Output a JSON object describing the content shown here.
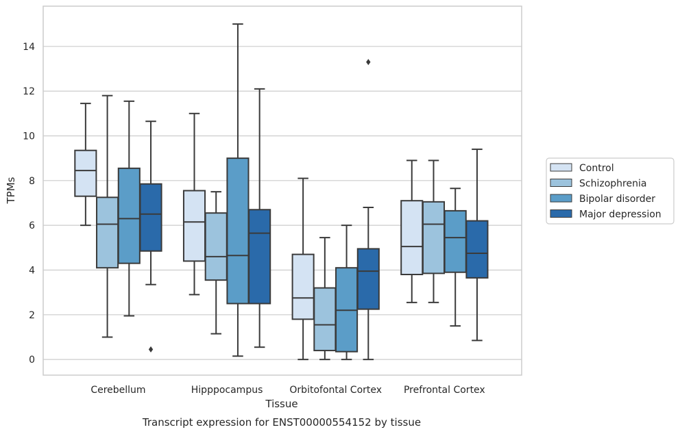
{
  "chart_data": {
    "type": "box",
    "title": "",
    "caption": "Transcript expression for ENST00000554152 by tissue",
    "xlabel": "Tissue",
    "ylabel": "TPMs",
    "ylim": [
      -0.7,
      15.8
    ],
    "yticks": [
      0,
      2,
      4,
      6,
      8,
      10,
      12,
      14
    ],
    "grid": "horizontal",
    "legend_position": "right",
    "categories": [
      "Cerebellum",
      "Hipppocampus",
      "Orbitofontal Cortex",
      "Prefrontal Cortex"
    ],
    "series": [
      {
        "name": "Control",
        "color": "#d4e3f3",
        "boxes": [
          {
            "whislo": 6.0,
            "q1": 7.3,
            "med": 8.45,
            "q3": 9.35,
            "whishi": 11.45,
            "fliers": []
          },
          {
            "whislo": 2.9,
            "q1": 4.4,
            "med": 6.15,
            "q3": 7.55,
            "whishi": 11.0,
            "fliers": []
          },
          {
            "whislo": 0.0,
            "q1": 1.8,
            "med": 2.75,
            "q3": 4.7,
            "whishi": 8.1,
            "fliers": []
          },
          {
            "whislo": 2.55,
            "q1": 3.8,
            "med": 5.05,
            "q3": 7.1,
            "whishi": 8.9,
            "fliers": []
          }
        ]
      },
      {
        "name": "Schizophrenia",
        "color": "#9cc3dd",
        "boxes": [
          {
            "whislo": 1.0,
            "q1": 4.1,
            "med": 6.05,
            "q3": 7.25,
            "whishi": 11.8,
            "fliers": []
          },
          {
            "whislo": 1.15,
            "q1": 3.55,
            "med": 4.6,
            "q3": 6.55,
            "whishi": 7.5,
            "fliers": []
          },
          {
            "whislo": 0.0,
            "q1": 0.4,
            "med": 1.55,
            "q3": 3.2,
            "whishi": 5.45,
            "fliers": []
          },
          {
            "whislo": 2.55,
            "q1": 3.85,
            "med": 6.05,
            "q3": 7.05,
            "whishi": 8.9,
            "fliers": []
          }
        ]
      },
      {
        "name": "Bipolar disorder",
        "color": "#5b9dc8",
        "boxes": [
          {
            "whislo": 1.95,
            "q1": 4.3,
            "med": 6.3,
            "q3": 8.55,
            "whishi": 11.55,
            "fliers": []
          },
          {
            "whislo": 0.15,
            "q1": 2.5,
            "med": 4.65,
            "q3": 9.0,
            "whishi": 15.0,
            "fliers": []
          },
          {
            "whislo": 0.0,
            "q1": 0.35,
            "med": 2.2,
            "q3": 4.1,
            "whishi": 6.0,
            "fliers": []
          },
          {
            "whislo": 1.5,
            "q1": 3.9,
            "med": 5.45,
            "q3": 6.65,
            "whishi": 7.65,
            "fliers": []
          }
        ]
      },
      {
        "name": "Major depression",
        "color": "#2a6aaa",
        "boxes": [
          {
            "whislo": 3.35,
            "q1": 4.85,
            "med": 6.5,
            "q3": 7.85,
            "whishi": 10.65,
            "fliers": [
              0.45
            ]
          },
          {
            "whislo": 0.55,
            "q1": 2.5,
            "med": 5.65,
            "q3": 6.7,
            "whishi": 12.1,
            "fliers": []
          },
          {
            "whislo": 0.0,
            "q1": 2.25,
            "med": 3.95,
            "q3": 4.95,
            "whishi": 6.8,
            "fliers": [
              13.3
            ]
          },
          {
            "whislo": 0.85,
            "q1": 3.65,
            "med": 4.75,
            "q3": 6.2,
            "whishi": 9.4,
            "fliers": []
          }
        ]
      }
    ]
  }
}
